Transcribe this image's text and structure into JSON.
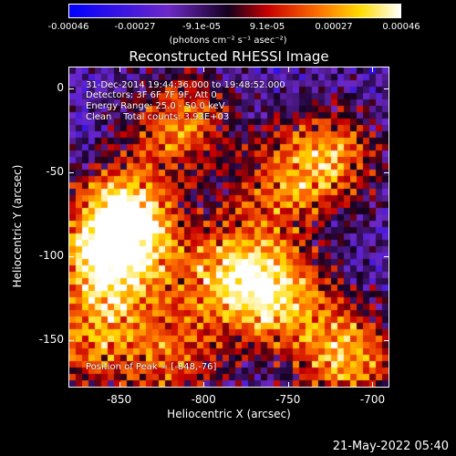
{
  "colorbar": {
    "ticks": [
      "-0.00046",
      "-0.00027",
      "-9.1e-05",
      "9.1e-05",
      "0.00027",
      "0.00046"
    ],
    "units": "(photons cm⁻² s⁻¹ asec⁻²)"
  },
  "annotation": {
    "time_range": "31-Dec-2014 19:44:36.000 to 19:48:52.000",
    "detectors": "Detectors: 3F 6F 7F 9F, Att 0",
    "energy_range": "Energy Range: 25.0 - 50.0 keV",
    "clean": "Clean    Total counts: 3.93E+03",
    "peak": "Position of Peak = [-848,-76]"
  },
  "timestamp": "21-May-2022 05:40",
  "chart_data": {
    "type": "heatmap",
    "title": "Reconstructed RHESSI Image",
    "xlabel": "Heliocentric X (arcsec)",
    "ylabel": "Heliocentric Y (arcsec)",
    "xlim": [
      -880,
      -690
    ],
    "ylim": [
      -178,
      13
    ],
    "xticks": [
      -850,
      -800,
      -750,
      -700
    ],
    "yticks": [
      0,
      -50,
      -100,
      -150
    ],
    "xtick_labels": [
      "-850",
      "-800",
      "-750",
      "-700"
    ],
    "ytick_labels": [
      "0",
      "-50",
      "-100",
      "-150"
    ],
    "colorbar_range": [
      -0.00046,
      0.00046
    ],
    "colormap": "blue-purple-black-red-yellow-white",
    "peak_position": [
      -848,
      -76
    ],
    "bright_regions": [
      {
        "x": -848,
        "y": -76,
        "intensity": 1.0
      },
      {
        "x": -855,
        "y": -105,
        "intensity": 0.9
      },
      {
        "x": -815,
        "y": -20,
        "intensity": 0.7
      },
      {
        "x": -785,
        "y": -110,
        "intensity": 0.8
      },
      {
        "x": -755,
        "y": -125,
        "intensity": 0.75
      },
      {
        "x": -715,
        "y": -160,
        "intensity": 0.8
      },
      {
        "x": -725,
        "y": -40,
        "intensity": 0.7
      },
      {
        "x": -755,
        "y": -60,
        "intensity": 0.5
      },
      {
        "x": -820,
        "y": -160,
        "intensity": 0.6
      },
      {
        "x": -870,
        "y": -150,
        "intensity": 0.6
      }
    ]
  }
}
